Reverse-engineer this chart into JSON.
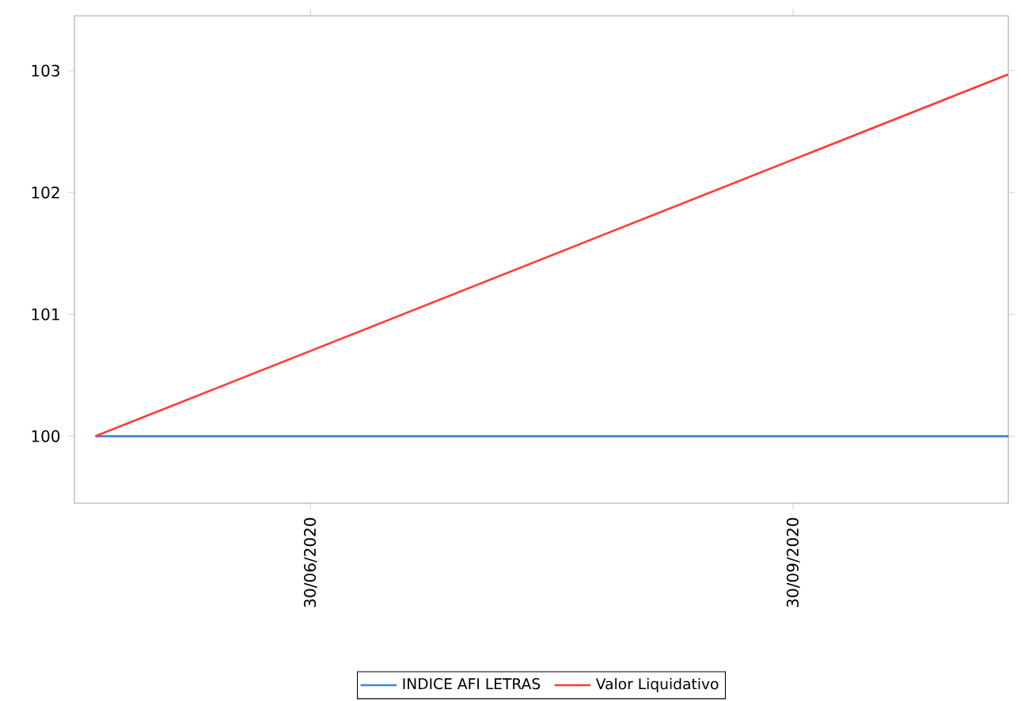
{
  "chart_data": {
    "type": "line",
    "x": [
      "2020-05-20",
      "2020-11-10"
    ],
    "series": [
      {
        "name": "INDICE AFI LETRAS",
        "color": "#4a7fd6",
        "values": [
          100,
          100
        ]
      },
      {
        "name": "Valor Liquidativo",
        "color": "#ff3b3b",
        "values": [
          100,
          102.97
        ]
      }
    ],
    "xlim": [
      "2020-05-16",
      "2020-11-10"
    ],
    "xticks": [
      {
        "value": "2020-06-30",
        "label": "30/06/2020"
      },
      {
        "value": "2020-09-30",
        "label": "30/09/2020"
      }
    ],
    "ylim": [
      99.45,
      103.45
    ],
    "yticks": [
      100,
      101,
      102,
      103
    ],
    "grid": false,
    "legend": "bottom",
    "marker": "none",
    "line_style": "solid"
  }
}
